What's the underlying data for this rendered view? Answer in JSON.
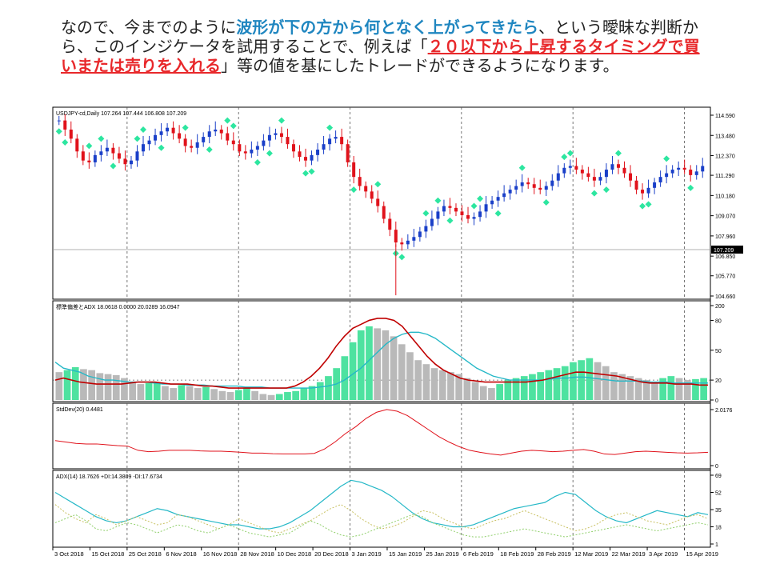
{
  "caption": {
    "seg1": "なので、今までのように",
    "seg2": "波形が下の方から何となく上がってきたら",
    "seg3": "、という曖昧な判断から、このインジケータを試用することで、例えば「",
    "seg4": "２０以下から上昇するタイミングで買いまたは売りを入れる",
    "seg5": "」等の値を基にしたトレードができるようになります。"
  },
  "colors": {
    "accent_blue": "#1f86c0",
    "accent_red": "#e8282b",
    "bull_candle": "#1a3fc8",
    "bear_candle": "#e0121b",
    "diamond": "#2de6a0",
    "adx_red": "#c00000",
    "adx_cyan": "#25b8c7",
    "hist_green": "#4ee2a0",
    "hist_gray": "#b9b9b9"
  },
  "chart_data": [
    {
      "type": "candlestick",
      "title": "USDJPY-cd,Daily 107.264 107.444 106.808 107.209",
      "y_ticks": [
        "114.590",
        "113.480",
        "112.370",
        "111.290",
        "110.180",
        "109.070",
        "107.960",
        "106.850",
        "105.770",
        "104.660"
      ],
      "current_price": "107.209",
      "x_labels": [
        "3 Oct 2018",
        "15 Oct 2018",
        "25 Oct 2018",
        "6 Nov 2018",
        "16 Nov 2018",
        "28 Nov 2018",
        "10 Dec 2018",
        "20 Dec 2018",
        "3 Jan 2019",
        "15 Jan 2019",
        "25 Jan 2019",
        "6 Feb 2019",
        "18 Feb 2019",
        "28 Feb 2019",
        "12 Mar 2019",
        "22 Mar 2019",
        "3 Apr 2019",
        "15 Apr 2019"
      ],
      "close_path": [
        114.3,
        113.8,
        113.3,
        112.6,
        112.1,
        112.0,
        112.4,
        112.6,
        112.8,
        112.5,
        112.2,
        111.9,
        112.1,
        112.6,
        113.0,
        113.2,
        113.5,
        113.7,
        113.9,
        113.6,
        113.3,
        112.9,
        112.8,
        113.1,
        113.4,
        113.7,
        113.8,
        113.6,
        113.2,
        113.0,
        112.6,
        112.5,
        112.7,
        112.9,
        113.2,
        113.5,
        113.6,
        113.4,
        113.0,
        112.6,
        112.3,
        112.1,
        112.4,
        112.7,
        113.0,
        113.3,
        113.4,
        113.0,
        112.0,
        111.2,
        110.7,
        110.4,
        110.0,
        109.6,
        108.9,
        108.3,
        107.6,
        107.5,
        107.7,
        107.9,
        108.2,
        108.5,
        108.9,
        109.3,
        109.6,
        109.5,
        109.3,
        109.1,
        108.9,
        109.0,
        109.3,
        109.7,
        109.9,
        110.1,
        110.3,
        110.5,
        110.7,
        110.9,
        110.8,
        110.6,
        110.5,
        110.7,
        111.0,
        111.4,
        111.7,
        111.8,
        111.6,
        111.4,
        111.2,
        111.0,
        111.2,
        111.6,
        111.9,
        111.7,
        111.4,
        111.0,
        110.5,
        110.3,
        110.6,
        110.9,
        111.2,
        111.4,
        111.6,
        111.7,
        111.6,
        111.3,
        111.5,
        111.8
      ]
    },
    {
      "type": "line",
      "title": "標準偏差とADX 18.0618 0.0000 20.0289 16.0947",
      "y_ticks": [
        "200",
        "80",
        "50",
        "20",
        "0"
      ],
      "series": [
        {
          "name": "",
          "values": [
            38,
            32,
            30,
            28,
            24,
            22,
            20,
            20,
            19,
            18,
            18,
            18,
            17,
            16,
            16,
            16,
            15,
            15,
            15,
            14,
            14,
            14,
            14,
            13,
            13,
            13,
            12,
            12,
            12,
            12,
            12,
            12,
            13,
            14,
            16,
            20,
            26,
            32,
            40,
            48,
            56,
            62,
            66,
            68,
            68,
            66,
            62,
            56,
            50,
            44,
            38,
            32,
            28,
            24,
            22,
            20,
            20,
            20,
            20,
            20,
            21,
            22,
            22,
            23,
            23,
            22,
            21,
            20,
            19,
            19,
            19,
            19,
            18,
            18,
            18,
            17,
            17,
            17,
            17,
            17
          ]
        },
        {
          "name": "",
          "values": [
            28,
            30,
            33,
            31,
            30,
            27,
            26,
            25,
            22,
            18,
            16,
            17,
            18,
            14,
            12,
            15,
            14,
            12,
            13,
            11,
            9,
            8,
            10,
            12,
            9,
            6,
            5,
            6,
            8,
            9,
            12,
            14,
            18,
            24,
            32,
            44,
            58,
            70,
            74,
            72,
            70,
            64,
            56,
            48,
            40,
            36,
            32,
            30,
            28,
            26,
            22,
            18,
            14,
            12,
            16,
            20,
            22,
            24,
            26,
            28,
            30,
            32,
            34,
            38,
            40,
            42,
            38,
            34,
            28,
            26,
            24,
            22,
            20,
            18,
            22,
            24,
            22,
            20,
            21,
            22
          ]
        },
        {
          "name": "",
          "values": [
            20,
            22,
            20,
            18,
            17,
            16,
            16,
            16,
            16,
            17,
            18,
            18,
            18,
            17,
            16,
            16,
            16,
            15,
            14,
            14,
            13,
            12,
            12,
            12,
            12,
            12,
            12,
            12,
            12,
            14,
            18,
            24,
            32,
            42,
            54,
            64,
            72,
            76,
            80,
            82,
            82,
            80,
            74,
            64,
            54,
            44,
            36,
            30,
            26,
            22,
            20,
            19,
            18,
            18,
            18,
            18,
            18,
            18,
            19,
            20,
            22,
            24,
            26,
            28,
            28,
            27,
            26,
            25,
            24,
            22,
            20,
            18,
            17,
            17,
            17,
            16,
            16,
            16,
            15,
            15
          ]
        }
      ]
    },
    {
      "type": "line",
      "title": "StdDev(20) 0.4481",
      "y_ticks": [
        "2.0176",
        "0"
      ],
      "series": [
        {
          "name": "",
          "values": [
            0.9,
            0.85,
            0.8,
            0.78,
            0.78,
            0.75,
            0.72,
            0.7,
            0.55,
            0.5,
            0.52,
            0.55,
            0.55,
            0.55,
            0.53,
            0.52,
            0.52,
            0.5,
            0.48,
            0.45,
            0.45,
            0.43,
            0.42,
            0.42,
            0.42,
            0.44,
            0.6,
            0.85,
            1.15,
            1.4,
            1.7,
            1.92,
            2.02,
            1.96,
            1.8,
            1.55,
            1.3,
            1.05,
            0.85,
            0.68,
            0.55,
            0.48,
            0.42,
            0.38,
            0.45,
            0.52,
            0.55,
            0.53,
            0.5,
            0.52,
            0.55,
            0.58,
            0.52,
            0.42,
            0.4,
            0.45,
            0.5,
            0.52,
            0.5,
            0.48,
            0.46,
            0.45,
            0.46,
            0.48
          ]
        }
      ]
    },
    {
      "type": "line",
      "title": "ADX(14) 18.7626 +DI:14.3809 -DI:17.6734",
      "y_ticks": [
        "69",
        "52",
        "35",
        "18",
        "1"
      ],
      "series": [
        {
          "name": "",
          "values": [
            52,
            46,
            40,
            34,
            28,
            24,
            22,
            24,
            28,
            32,
            36,
            34,
            30,
            28,
            26,
            24,
            22,
            20,
            20,
            18,
            16,
            16,
            18,
            22,
            28,
            34,
            42,
            50,
            58,
            64,
            62,
            58,
            54,
            48,
            40,
            32,
            26,
            22,
            20,
            18,
            18,
            20,
            24,
            28,
            32,
            36,
            38,
            40,
            42,
            48,
            52,
            50,
            42,
            34,
            28,
            24,
            22,
            26,
            30,
            34,
            32,
            30,
            28,
            32,
            30
          ]
        },
        {
          "name": "",
          "values": [
            40,
            32,
            26,
            22,
            30,
            26,
            20,
            24,
            28,
            24,
            20,
            22,
            30,
            28,
            24,
            20,
            16,
            20,
            26,
            22,
            18,
            14,
            12,
            16,
            20,
            24,
            30,
            36,
            40,
            34,
            26,
            20,
            16,
            18,
            22,
            28,
            34,
            32,
            26,
            22,
            18,
            16,
            20,
            24,
            26,
            30,
            34,
            30,
            26,
            22,
            18,
            14,
            16,
            20,
            26,
            30,
            32,
            28,
            24,
            22,
            20,
            24,
            28,
            30,
            26
          ]
        },
        {
          "name": "",
          "values": [
            22,
            26,
            30,
            24,
            16,
            14,
            18,
            22,
            20,
            16,
            12,
            16,
            20,
            18,
            14,
            12,
            16,
            20,
            16,
            12,
            10,
            8,
            10,
            12,
            18,
            24,
            20,
            14,
            10,
            8,
            10,
            14,
            18,
            22,
            26,
            30,
            28,
            22,
            18,
            14,
            10,
            8,
            8,
            10,
            12,
            14,
            16,
            14,
            12,
            10,
            8,
            10,
            12,
            14,
            16,
            18,
            20,
            18,
            16,
            14,
            16,
            18,
            20,
            22,
            20
          ]
        }
      ]
    }
  ]
}
